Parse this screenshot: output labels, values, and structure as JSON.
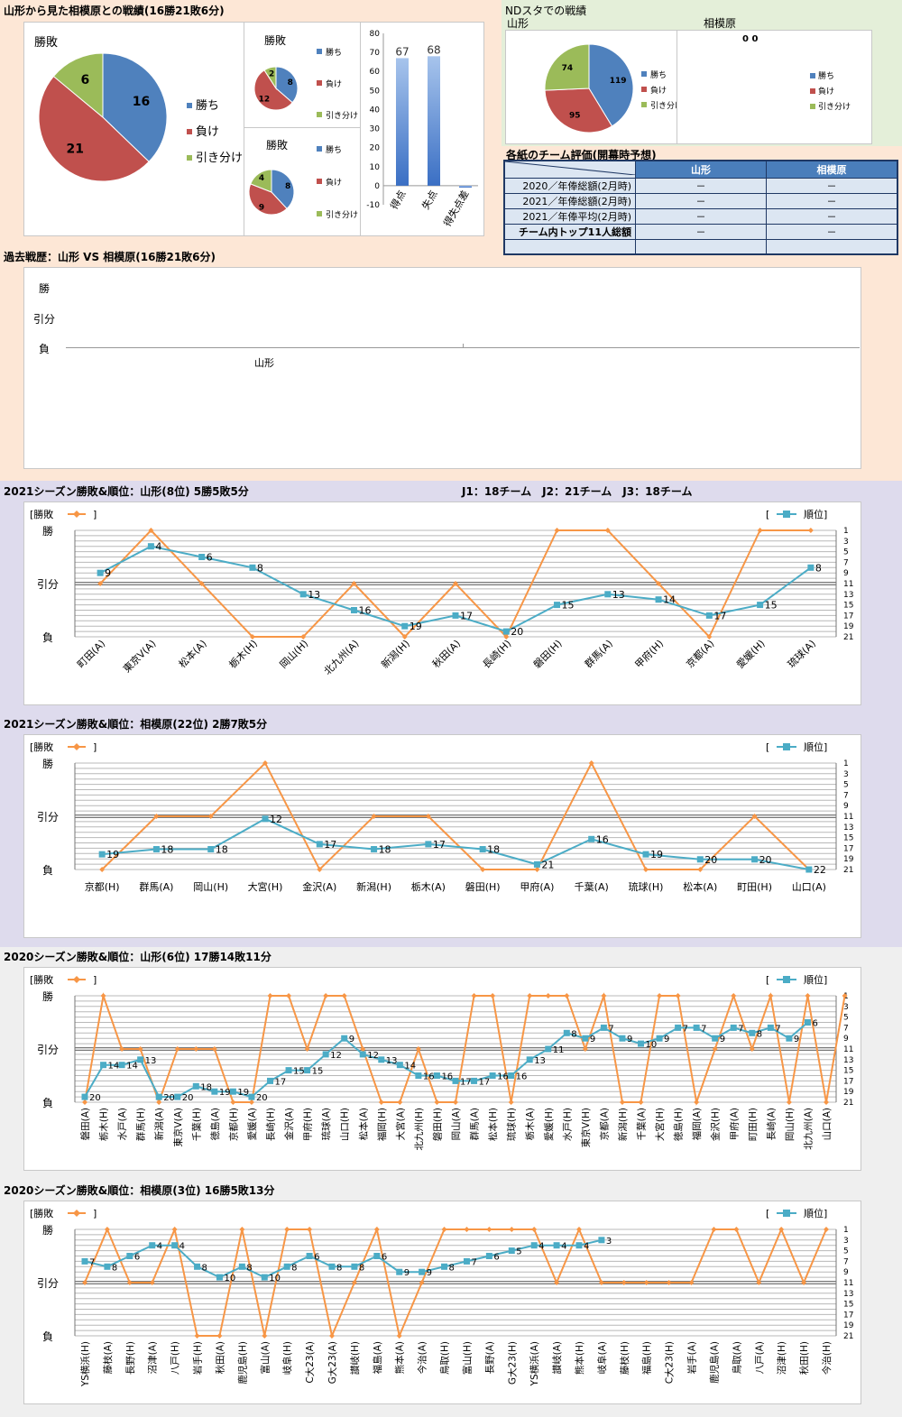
{
  "colors": {
    "blue": "#4f81bd",
    "red": "#c0504d",
    "green": "#9bbb59",
    "orange": "#f79646",
    "teal": "#4bacc6"
  },
  "sec1": {
    "title": "山形から見た相模原との戦績(16勝21敗6分)",
    "pie_main": {
      "title": "勝敗",
      "legend": [
        "勝ち",
        "負け",
        "引き分け"
      ]
    },
    "pie_home": {
      "title": "勝敗",
      "legend": [
        "勝ち",
        "負け",
        "引き分け"
      ]
    },
    "pie_away": {
      "title": "勝敗",
      "legend": [
        "勝ち",
        "負け",
        "引き分け"
      ]
    }
  },
  "nd": {
    "title": "NDスタでの戦績",
    "left_label": "山形",
    "right_label": "相模原",
    "right_values": "0 0",
    "legend": [
      "勝ち",
      "負け",
      "引き分け"
    ]
  },
  "eval": {
    "title": "各紙のチーム評価(開幕時予想)",
    "col_headers": [
      "山形",
      "相模原"
    ],
    "rows": [
      {
        "label": "2020／年俸総額(2月時)",
        "a": "－",
        "b": "－"
      },
      {
        "label": "2021／年俸総額(2月時)",
        "a": "－",
        "b": "－"
      },
      {
        "label": "2021／年俸平均(2月時)",
        "a": "－",
        "b": "－"
      },
      {
        "label": "チーム内トップ11人総額",
        "a": "－",
        "b": "－"
      }
    ]
  },
  "history": {
    "title": "過去戦歴：山形 VS 相模原(16勝21敗6分)",
    "y_labels": [
      "勝",
      "引分",
      "負"
    ],
    "x_label": "山形"
  },
  "s2021y": {
    "title": "2021シーズン勝敗&順位：山形(8位) 5勝5敗5分",
    "note": "J1：18チーム　J2：21チーム　J3：18チーム"
  },
  "s2021s": {
    "title": "2021シーズン勝敗&順位：相模原(22位) 2勝7敗5分"
  },
  "s2020y": {
    "title": "2020シーズン勝敗&順位：山形(6位) 17勝14敗11分"
  },
  "s2020s": {
    "title": "2020シーズン勝敗&順位：相模原(3位) 16勝5敗13分"
  },
  "legend": {
    "result": "[勝敗",
    "result_end": "]",
    "rank_start": "[",
    "rank": "順位]"
  },
  "chart_data": [
    {
      "id": "pie_main",
      "type": "pie",
      "labels": [
        "勝ち",
        "負け",
        "引き分け"
      ],
      "values": [
        16,
        21,
        6
      ]
    },
    {
      "id": "pie_home",
      "type": "pie",
      "labels": [
        "勝ち",
        "負け",
        "引き分け"
      ],
      "values": [
        8,
        12,
        2
      ]
    },
    {
      "id": "pie_away",
      "type": "pie",
      "labels": [
        "勝ち",
        "負け",
        "引き分け"
      ],
      "values": [
        8,
        9,
        4
      ]
    },
    {
      "id": "bar_goals",
      "type": "bar",
      "categories": [
        "得点",
        "失点",
        "得失点差"
      ],
      "values": [
        67,
        68,
        -1
      ],
      "value_labels": [
        "67",
        "68",
        ""
      ],
      "ylim": [
        -10,
        80
      ],
      "yticks": [
        -10,
        0,
        10,
        20,
        30,
        40,
        50,
        60,
        70,
        80
      ]
    },
    {
      "id": "pie_nd",
      "type": "pie",
      "labels": [
        "勝ち",
        "負け",
        "引き分け"
      ],
      "values": [
        119,
        95,
        74
      ]
    },
    {
      "id": "line_2021_yamagata",
      "type": "line",
      "y_result_labels": [
        "勝",
        "引分",
        "負"
      ],
      "rank_ticks": [
        1,
        3,
        5,
        7,
        9,
        11,
        13,
        15,
        17,
        19,
        21
      ],
      "rank_max": 21,
      "categories": [
        "町田(A)",
        "東京V(A)",
        "松本(A)",
        "栃木(H)",
        "岡山(H)",
        "北九州(A)",
        "新潟(H)",
        "秋田(A)",
        "長崎(H)",
        "磐田(H)",
        "群馬(A)",
        "甲府(H)",
        "京都(A)",
        "愛媛(H)",
        "琉球(A)"
      ],
      "results": [
        "D",
        "W",
        "D",
        "L",
        "L",
        "D",
        "L",
        "D",
        "L",
        "W",
        "W",
        "D",
        "L",
        "W",
        "W"
      ],
      "ranks": [
        9,
        4,
        6,
        8,
        13,
        16,
        19,
        17,
        20,
        15,
        13,
        14,
        17,
        15,
        8
      ]
    },
    {
      "id": "line_2021_sagamihara",
      "type": "line",
      "y_result_labels": [
        "勝",
        "引分",
        "負"
      ],
      "rank_ticks": [
        1,
        3,
        5,
        7,
        9,
        11,
        13,
        15,
        17,
        19,
        21
      ],
      "rank_max": 22,
      "categories": [
        "京都(H)",
        "群馬(A)",
        "岡山(H)",
        "大宮(H)",
        "金沢(A)",
        "新潟(H)",
        "栃木(A)",
        "磐田(H)",
        "甲府(A)",
        "千葉(A)",
        "琉球(H)",
        "松本(A)",
        "町田(H)",
        "山口(A)"
      ],
      "results": [
        "L",
        "D",
        "D",
        "W",
        "L",
        "D",
        "D",
        "L",
        "L",
        "W",
        "L",
        "L",
        "D",
        "L"
      ],
      "ranks": [
        19,
        18,
        18,
        12,
        17,
        18,
        17,
        18,
        21,
        16,
        19,
        20,
        20,
        22
      ]
    },
    {
      "id": "line_2020_yamagata",
      "type": "line",
      "y_result_labels": [
        "勝",
        "引分",
        "負"
      ],
      "rank_ticks": [
        1,
        3,
        5,
        7,
        9,
        11,
        13,
        15,
        17,
        19,
        21
      ],
      "rank_max": 21,
      "categories": [
        "磐田(A)",
        "栃木(H)",
        "水戸(A)",
        "群馬(H)",
        "新潟(A)",
        "東京V(A)",
        "千葉(H)",
        "徳島(A)",
        "京都(H)",
        "愛媛(A)",
        "長崎(H)",
        "金沢(A)",
        "甲府(H)",
        "琉球(A)",
        "山口(H)",
        "松本(A)",
        "福岡(H)",
        "大宮(A)",
        "北九州(H)",
        "磐田(H)",
        "岡山(A)",
        "群馬(A)",
        "松本(H)",
        "琉球(H)",
        "栃木(A)",
        "愛媛(H)",
        "水戸(H)",
        "東京V(H)",
        "京都(A)",
        "新潟(H)",
        "千葉(A)",
        "大宮(H)",
        "徳島(H)",
        "福岡(A)",
        "金沢(H)",
        "甲府(A)",
        "町田(H)",
        "長崎(A)",
        "岡山(H)",
        "北九州(A)",
        "山口(A)"
      ],
      "results": [
        "L",
        "W",
        "D",
        "D",
        "L",
        "D",
        "D",
        "D",
        "L",
        "L",
        "W",
        "W",
        "D",
        "W",
        "W",
        "D",
        "L",
        "L",
        "D",
        "L",
        "L",
        "W",
        "W",
        "L",
        "W",
        "W",
        "W",
        "D",
        "W",
        "L",
        "L",
        "W",
        "W",
        "L",
        "D",
        "W",
        "D",
        "W",
        "L",
        "W",
        "L",
        "W"
      ],
      "ranks": [
        20,
        14,
        14,
        13,
        20,
        20,
        18,
        19,
        19,
        20,
        17,
        15,
        15,
        12,
        9,
        12,
        13,
        14,
        16,
        16,
        17,
        17,
        16,
        16,
        13,
        11,
        8,
        9,
        7,
        9,
        10,
        9,
        7,
        7,
        9,
        7,
        8,
        7,
        9,
        6,
        null
      ]
    },
    {
      "id": "line_2020_sagamihara",
      "type": "line",
      "y_result_labels": [
        "勝",
        "引分",
        "負"
      ],
      "rank_ticks": [
        1,
        3,
        5,
        7,
        9,
        11,
        13,
        15,
        17,
        19,
        21
      ],
      "rank_max": 21,
      "categories": [
        "YS横浜(H)",
        "藤枝(A)",
        "長野(H)",
        "沼津(A)",
        "八戸(H)",
        "岩手(H)",
        "秋田(A)",
        "鹿児島(H)",
        "富山(A)",
        "岐阜(H)",
        "C大23(A)",
        "G大23(A)",
        "讃岐(H)",
        "福島(A)",
        "熊本(A)",
        "今治(A)",
        "鳥取(H)",
        "富山(H)",
        "長野(A)",
        "G大23(H)",
        "YS横浜(A)",
        "讃岐(A)",
        "熊本(H)",
        "岐阜(A)",
        "藤枝(H)",
        "福島(H)",
        "C大23(H)",
        "岩手(A)",
        "鹿児島(A)",
        "鳥取(A)",
        "八戸(A)",
        "沼津(H)",
        "秋田(H)",
        "今治(H)"
      ],
      "results": [
        "D",
        "W",
        "D",
        "D",
        "W",
        "L",
        "L",
        "W",
        "L",
        "W",
        "W",
        "L",
        "D",
        "W",
        "L",
        "D",
        "W",
        "W",
        "W",
        "W",
        "W",
        "D",
        "W",
        "D",
        "D",
        "D",
        "D",
        "D",
        "W",
        "W",
        "D",
        "W",
        "D",
        "W"
      ],
      "ranks": [
        7,
        8,
        6,
        4,
        4,
        8,
        10,
        8,
        10,
        8,
        6,
        8,
        8,
        6,
        9,
        9,
        8,
        7,
        6,
        5,
        4,
        4,
        4,
        3,
        null,
        null,
        null,
        null,
        null,
        null,
        null,
        null,
        null,
        null
      ]
    }
  ]
}
